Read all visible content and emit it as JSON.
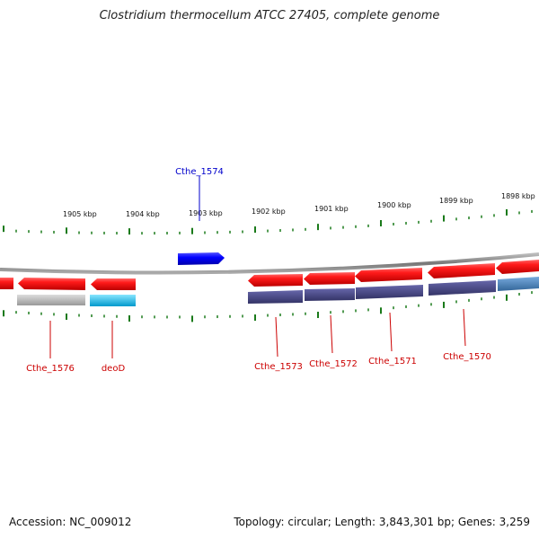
{
  "header": {
    "title": "Clostridium thermocellum ATCC 27405, complete genome"
  },
  "footer": {
    "accession": "Accession: NC_009012",
    "stats": "Topology: circular; Length: 3,843,301 bp; Genes: 3,259"
  },
  "scale": {
    "unit_labels": [
      "1905 kbp",
      "1904 kbp",
      "1903 kbp",
      "1902 kbp",
      "1901 kbp",
      "1900 kbp",
      "1899 kbp",
      "1898 kbp"
    ]
  },
  "genes": [
    {
      "label": "Cthe_1576",
      "strand": "-",
      "color": "#cc0000"
    },
    {
      "label": "deoD",
      "strand": "-",
      "color": "#cc0000"
    },
    {
      "label": "Cthe_1574",
      "strand": "+",
      "color": "#0000cc"
    },
    {
      "label": "Cthe_1573",
      "strand": "-",
      "color": "#cc0000"
    },
    {
      "label": "Cthe_1572",
      "strand": "-",
      "color": "#cc0000"
    },
    {
      "label": "Cthe_1571",
      "strand": "-",
      "color": "#cc0000"
    },
    {
      "label": "Cthe_1570",
      "strand": "-",
      "color": "#cc0000"
    }
  ],
  "colors": {
    "backbone": "#888888",
    "tick": "#1a7a1a",
    "gene_forward": "#0000ff",
    "gene_reverse": "#ee0000",
    "cog_gray": "#bbbbbb",
    "cog_cyan": "#33ccee",
    "cog_purple": "#444488",
    "cog_steel": "#4477aa"
  }
}
